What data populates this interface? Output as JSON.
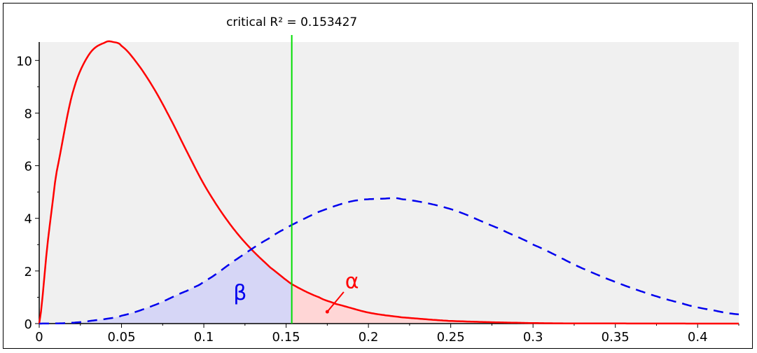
{
  "chart_data": {
    "type": "line",
    "title": "",
    "xlabel": "",
    "ylabel": "",
    "xlim": [
      0,
      0.425
    ],
    "ylim": [
      0,
      10.7
    ],
    "x_ticks": [
      0,
      0.05,
      0.1,
      0.15,
      0.2,
      0.25,
      0.3,
      0.35,
      0.4
    ],
    "x_tick_labels": [
      "0",
      "0.05",
      "0.1",
      "0.15",
      "0.2",
      "0.25",
      "0.3",
      "0.35",
      "0.4"
    ],
    "y_ticks": [
      0,
      2,
      4,
      6,
      8,
      10
    ],
    "y_tick_labels": [
      "0",
      "2",
      "4",
      "6",
      "8",
      "10"
    ],
    "critical_value": 0.153427,
    "critical_label": "critical R² = 0.153427",
    "series": [
      {
        "style": "solid",
        "color": "#ff0000",
        "x": [
          0,
          0.005,
          0.01,
          0.02,
          0.03,
          0.04,
          0.045,
          0.05,
          0.06,
          0.07,
          0.08,
          0.09,
          0.1,
          0.11,
          0.12,
          0.13,
          0.14,
          0.153427,
          0.17,
          0.18,
          0.2,
          0.22,
          0.25,
          0.3,
          0.35,
          0.4,
          0.425
        ],
        "y": [
          0,
          3.0,
          5.6,
          8.7,
          10.2,
          10.68,
          10.7,
          10.55,
          9.85,
          8.9,
          7.75,
          6.5,
          5.3,
          4.3,
          3.45,
          2.75,
          2.15,
          1.5,
          1.0,
          0.75,
          0.42,
          0.24,
          0.1,
          0.02,
          0.005,
          0.001,
          0
        ]
      },
      {
        "style": "dashed",
        "color": "#0000ee",
        "x": [
          0,
          0.02,
          0.04,
          0.05,
          0.07,
          0.09,
          0.1,
          0.12,
          0.14,
          0.153427,
          0.17,
          0.19,
          0.21,
          0.22,
          0.25,
          0.28,
          0.3,
          0.33,
          0.36,
          0.39,
          0.41,
          0.425
        ],
        "y": [
          0,
          0.03,
          0.17,
          0.3,
          0.7,
          1.25,
          1.6,
          2.45,
          3.25,
          3.75,
          4.25,
          4.65,
          4.75,
          4.73,
          4.35,
          3.6,
          3.0,
          2.1,
          1.35,
          0.78,
          0.5,
          0.35
        ]
      }
    ],
    "regions": [
      {
        "label": "β",
        "color": "#0000ee",
        "fill": "#d6d6f6"
      },
      {
        "label": "α",
        "color": "#ff0000",
        "fill": "#ffd6d6"
      }
    ],
    "colors": {
      "plot_background": "#f0f0f0",
      "critical_line": "#00dd00"
    }
  }
}
